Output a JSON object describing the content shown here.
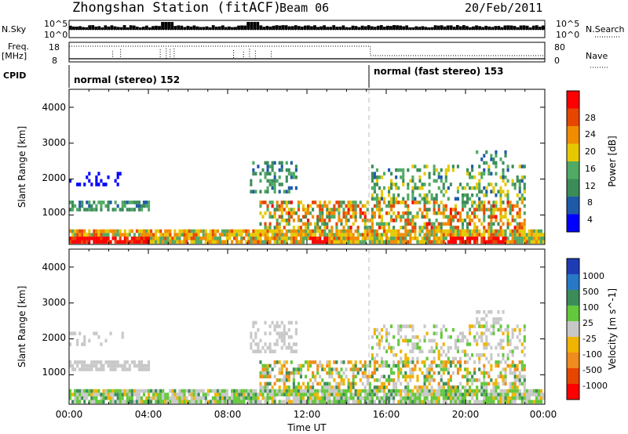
{
  "header": {
    "title": "Zhongshan Station (fitACF)",
    "beam": "Beam 06",
    "date": "20/Feb/2011"
  },
  "strip_labels": {
    "nsky": "N.Sky",
    "nsky_ticks": [
      "10^5",
      "10^0"
    ],
    "nsearch": "N.Search",
    "nsearch_ticks": [
      "10^5",
      "10^0"
    ],
    "freq": "Freq.",
    "freq_unit": "[MHz]",
    "freq_ticks": [
      "18",
      "8"
    ],
    "nave": "Nave",
    "nave_ticks": [
      "80",
      "0"
    ],
    "cpid": "CPID",
    "cpid_segments": [
      "normal (stereo) 152",
      "normal (fast stereo) 153"
    ]
  },
  "axes": {
    "ylabel": "Slant Range [km]",
    "y_ticks": [
      "1000",
      "2000",
      "3000",
      "4000"
    ],
    "x_ticks": [
      "00:00",
      "04:00",
      "08:00",
      "12:00",
      "16:00",
      "20:00",
      "00:00"
    ],
    "xlabel": "Time UT"
  },
  "colorbars": {
    "power": {
      "label": "Power [dB]",
      "ticks": [
        "4",
        "8",
        "12",
        "16",
        "20",
        "24",
        "28"
      ],
      "colors": [
        "#0000ff",
        "#1e5aa8",
        "#3c8c5a",
        "#50aa64",
        "#e6c800",
        "#f08c00",
        "#e64600",
        "#ff0000"
      ]
    },
    "velocity": {
      "label": "Velocity [m s^-1]",
      "ticks": [
        "1000",
        "500",
        "100",
        "25",
        "-25",
        "-100",
        "-500",
        "-1000"
      ],
      "colors": [
        "#1e3cb4",
        "#2878c8",
        "#3c8c5a",
        "#64c83c",
        "#c8c8c8",
        "#f0b400",
        "#f08c1e",
        "#e64600",
        "#ff0000"
      ]
    }
  },
  "chart_data": [
    {
      "type": "heatmap",
      "title": "Power",
      "xlabel": "Time UT",
      "ylabel": "Slant Range [km]",
      "xlim": [
        0,
        24
      ],
      "ylim": [
        180,
        4500
      ],
      "colorbar": "Power [dB]",
      "clim": [
        0,
        30
      ],
      "mode_change_hour": 15.2
    },
    {
      "type": "heatmap",
      "title": "Velocity",
      "xlabel": "Time UT",
      "ylabel": "Slant Range [km]",
      "xlim": [
        0,
        24
      ],
      "ylim": [
        180,
        4500
      ],
      "colorbar": "Velocity [m s^-1]",
      "clim": [
        -1000,
        1000
      ],
      "mode_change_hour": 15.2
    }
  ]
}
